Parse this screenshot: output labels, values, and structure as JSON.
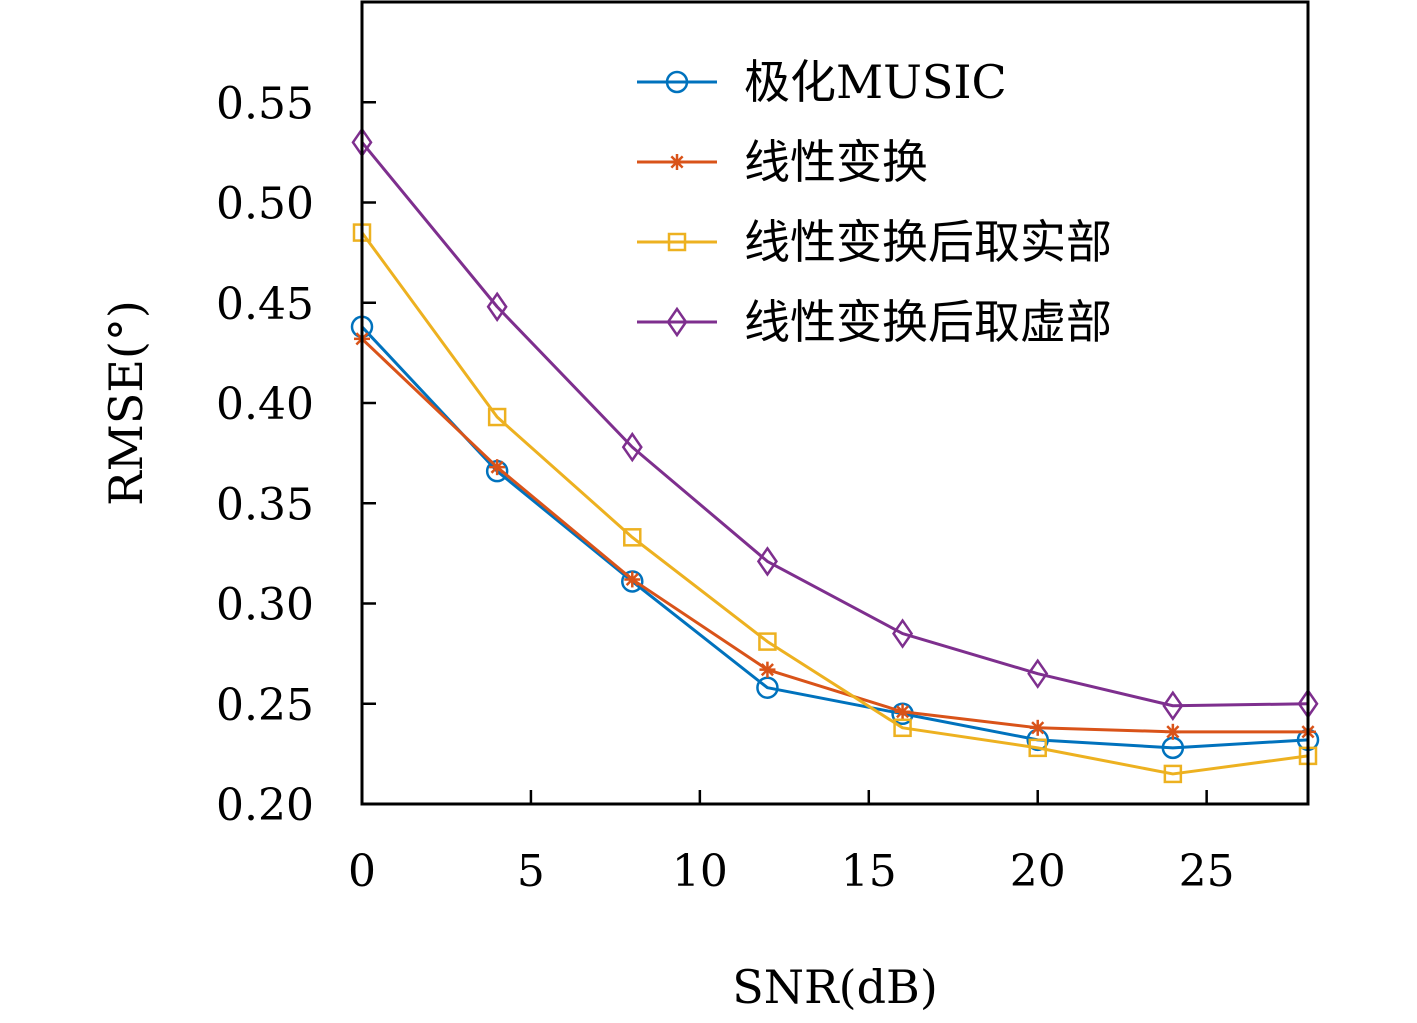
{
  "chart_data": {
    "type": "line",
    "title": "",
    "xlabel": "SNR(dB)",
    "ylabel": "RMSE(°)",
    "x": [
      0,
      4,
      8,
      12,
      16,
      20,
      24,
      28
    ],
    "xlim": [
      0,
      28
    ],
    "ylim": [
      0.2,
      0.6
    ],
    "xticks": [
      0,
      5,
      10,
      15,
      20,
      25
    ],
    "yticks": [
      0.2,
      0.25,
      0.3,
      0.35,
      0.4,
      0.45,
      0.5,
      0.55
    ],
    "xtick_labels": [
      "0",
      "5",
      "10",
      "15",
      "20",
      "25"
    ],
    "ytick_labels": [
      "0.20",
      "0.25",
      "0.30",
      "0.35",
      "0.40",
      "0.45",
      "0.50",
      "0.55"
    ],
    "grid": false,
    "legend_position": "top-right",
    "series": [
      {
        "name": "极化MUSIC",
        "color": "#0072BD",
        "marker": "circle",
        "values": [
          0.438,
          0.366,
          0.311,
          0.258,
          0.245,
          0.232,
          0.228,
          0.232
        ]
      },
      {
        "name": "线性变换",
        "color": "#D95319",
        "marker": "asterisk",
        "values": [
          0.432,
          0.368,
          0.312,
          0.267,
          0.246,
          0.238,
          0.236,
          0.236
        ]
      },
      {
        "name": "线性变换后取实部",
        "color": "#EDB120",
        "marker": "square",
        "values": [
          0.485,
          0.393,
          0.333,
          0.281,
          0.238,
          0.228,
          0.215,
          0.224
        ]
      },
      {
        "name": "线性变换后取虚部",
        "color": "#7E2F8E",
        "marker": "diamond",
        "values": [
          0.53,
          0.448,
          0.378,
          0.321,
          0.285,
          0.265,
          0.249,
          0.25
        ]
      }
    ]
  }
}
